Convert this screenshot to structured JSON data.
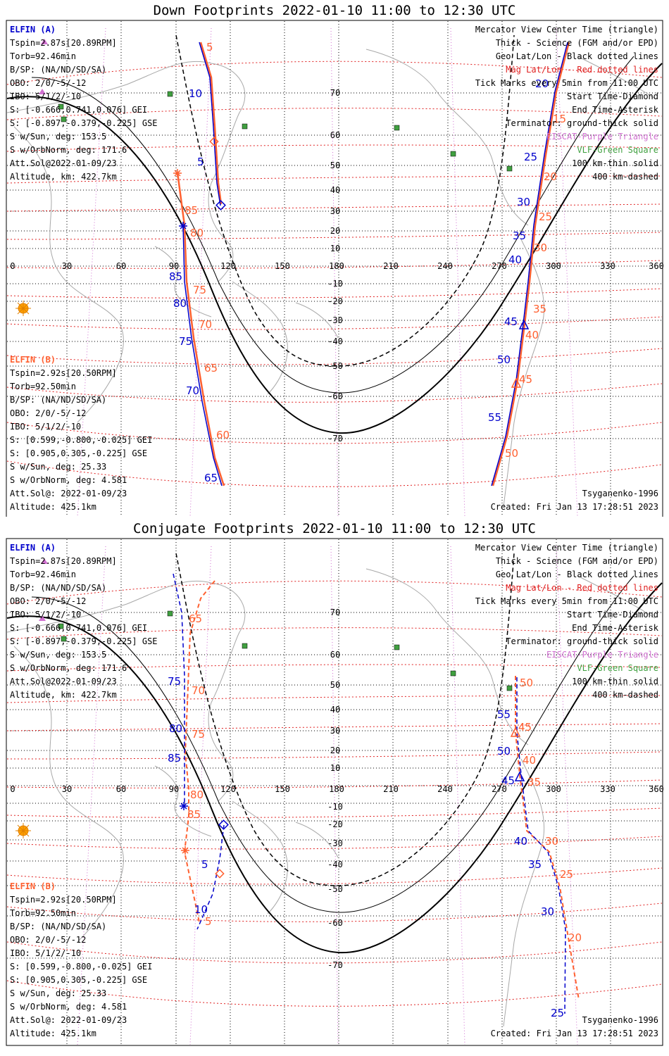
{
  "panels": [
    {
      "title": "Down Footprints 2022-01-10 11:00 to 12:30 UTC",
      "elfin_a": {
        "header": "ELFIN (A)",
        "lines": [
          "Tspin=2.87s[20.89RPM]",
          "Torb=92.46min",
          "B/SP: (NA/ND/SD/SA)",
          "OBO: 2/0/-5/-12",
          "IBO: 5/1/2/-10",
          "S: [-0.666,0.741,0.076] GEI",
          "S: [-0.897,-0.379,-0.225] GSE",
          "S w/Sun, deg: 153.5",
          "S w/OrbNorm, deg: 171.6",
          "Att.Sol@2022-01-09/23",
          "Altitude, km: 422.7km"
        ]
      },
      "elfin_b": {
        "header": "ELFIN (B)",
        "lines": [
          "Tspin=2.92s[20.50RPM]",
          "Torb=92.50min",
          "B/SP: (NA/ND/SD/SA)",
          "OBO: 2/0/-5/-12",
          "IBO: 5/1/2/-10",
          "S: [0.599,-0.800,-0.025] GEI",
          "S: [0.905,0.305,-0.225] GSE",
          "S w/Sun, deg: 25.33",
          "S w/OrbNorm, deg: 4.581",
          "Att.Sol@: 2022-01-09/23",
          "Altitude: 425.1km"
        ]
      },
      "legend": [
        {
          "text": "Mercator View Center Time (triangle)",
          "color": "#000000"
        },
        {
          "text": "Thick - Science (FGM and/or EPD)",
          "color": "#000000"
        },
        {
          "text": "Geo Lat/Lon - Black dotted lines",
          "color": "#000000"
        },
        {
          "text": "Mag Lat/Lon - Red dotted lines",
          "color": "#e02020"
        },
        {
          "text": "Tick Marks every 5min from 11:00 UTC",
          "color": "#000000"
        },
        {
          "text": "Start Time-Diamond",
          "color": "#000000"
        },
        {
          "text": "End Time-Asterisk",
          "color": "#000000"
        },
        {
          "text": "Terminator: ground-thick solid",
          "color": "#000000"
        },
        {
          "text": "EISCAT-Purple Triangle",
          "color": "#d070d0"
        },
        {
          "text": "VLF-Green Square",
          "color": "#40a040"
        },
        {
          "text": "100 km-thin solid",
          "color": "#000000"
        },
        {
          "text": "400 km-dashed",
          "color": "#000000"
        }
      ],
      "model": "Tsyganenko-1996",
      "created": "Created: Fri Jan 13 17:28:51 2023",
      "lon_ticks": [
        "0",
        "30",
        "60",
        "90",
        "120",
        "150",
        "180",
        "210",
        "240",
        "270",
        "300",
        "330",
        "360"
      ],
      "lat_ticks_n": [
        "70",
        "60",
        "50",
        "40",
        "30",
        "20",
        "10"
      ],
      "lat_ticks_s": [
        "-10",
        "-20",
        "-30",
        "-40",
        "-50",
        "-60",
        "-70"
      ],
      "labels_a": [
        "10",
        "5",
        "85",
        "80",
        "75",
        "70",
        "65",
        "20",
        "25",
        "30",
        "35",
        "40",
        "45",
        "50",
        "55"
      ],
      "labels_b": [
        "5",
        "85",
        "80",
        "75",
        "70",
        "65",
        "60",
        "15",
        "20",
        "25",
        "30",
        "35",
        "40",
        "45",
        "50"
      ]
    },
    {
      "title": "Conjugate Footprints 2022-01-10 11:00 to 12:30 UTC",
      "elfin_a": {
        "header": "ELFIN (A)",
        "lines": [
          "Tspin=2.87s[20.89RPM]",
          "Torb=92.46min",
          "B/SP: (NA/ND/SD/SA)",
          "OBO: 2/0/-5/-12",
          "IBO: 5/1/2/-10",
          "S: [-0.666,0.741,0.076] GEI",
          "S: [-0.897,-0.379,-0.225] GSE",
          "S w/Sun, deg: 153.5",
          "S w/OrbNorm, deg: 171.6",
          "Att.Sol@2022-01-09/23",
          "Altitude, km: 422.7km"
        ]
      },
      "elfin_b": {
        "header": "ELFIN (B)",
        "lines": [
          "Tspin=2.92s[20.50RPM]",
          "Torb=92.50min",
          "B/SP: (NA/ND/SD/SA)",
          "OBO: 2/0/-5/-12",
          "IBO: 5/1/2/-10",
          "S: [0.599,-0.800,-0.025] GEI",
          "S: [0.905,0.305,-0.225] GSE",
          "S w/Sun, deg: 25.33",
          "S w/OrbNorm, deg: 4.581",
          "Att.Sol@: 2022-01-09/23",
          "Altitude: 425.1km"
        ]
      },
      "legend": [
        {
          "text": "Mercator View Center Time (triangle)",
          "color": "#000000"
        },
        {
          "text": "Thick - Science (FGM and/or EPD)",
          "color": "#000000"
        },
        {
          "text": "Geo Lat/Lon - Black dotted lines",
          "color": "#000000"
        },
        {
          "text": "Mag Lat/Lon - Red dotted lines",
          "color": "#e02020"
        },
        {
          "text": "Tick Marks every 5min from 11:00 UTC",
          "color": "#000000"
        },
        {
          "text": "Start Time-Diamond",
          "color": "#000000"
        },
        {
          "text": "End Time-Asterisk",
          "color": "#000000"
        },
        {
          "text": "Terminator: ground-thick solid",
          "color": "#000000"
        },
        {
          "text": "EISCAT-Purple Triangle",
          "color": "#d070d0"
        },
        {
          "text": "VLF-Green Square",
          "color": "#40a040"
        },
        {
          "text": "100 km-thin solid",
          "color": "#000000"
        },
        {
          "text": "400 km-dashed",
          "color": "#000000"
        }
      ],
      "model": "Tsyganenko-1996",
      "created": "Created: Fri Jan 13 17:28:51 2023",
      "lon_ticks": [
        "0",
        "30",
        "60",
        "90",
        "120",
        "150",
        "180",
        "210",
        "240",
        "270",
        "300",
        "330",
        "360"
      ],
      "lat_ticks_n": [
        "70",
        "60",
        "50",
        "40",
        "30",
        "20",
        "10"
      ],
      "lat_ticks_s": [
        "-10",
        "-20",
        "-30",
        "-40",
        "-50",
        "-60",
        "-70"
      ],
      "labels_a": [
        "75",
        "80",
        "85",
        "5",
        "10",
        "55",
        "50",
        "45",
        "40",
        "35",
        "30",
        "25"
      ],
      "labels_b": [
        "65",
        "70",
        "75",
        "80",
        "85",
        "5",
        "50",
        "45",
        "40",
        "35",
        "30",
        "25",
        "20"
      ]
    }
  ],
  "colors": {
    "elfin_a": "#0000cc",
    "elfin_b": "#ff6030",
    "grid_mag": "#e02020",
    "grid_geo": "#000000",
    "eiscat": "#d070d0",
    "vlf": "#40a040",
    "sun": "#ffa000",
    "coast": "#a8a8a8"
  }
}
